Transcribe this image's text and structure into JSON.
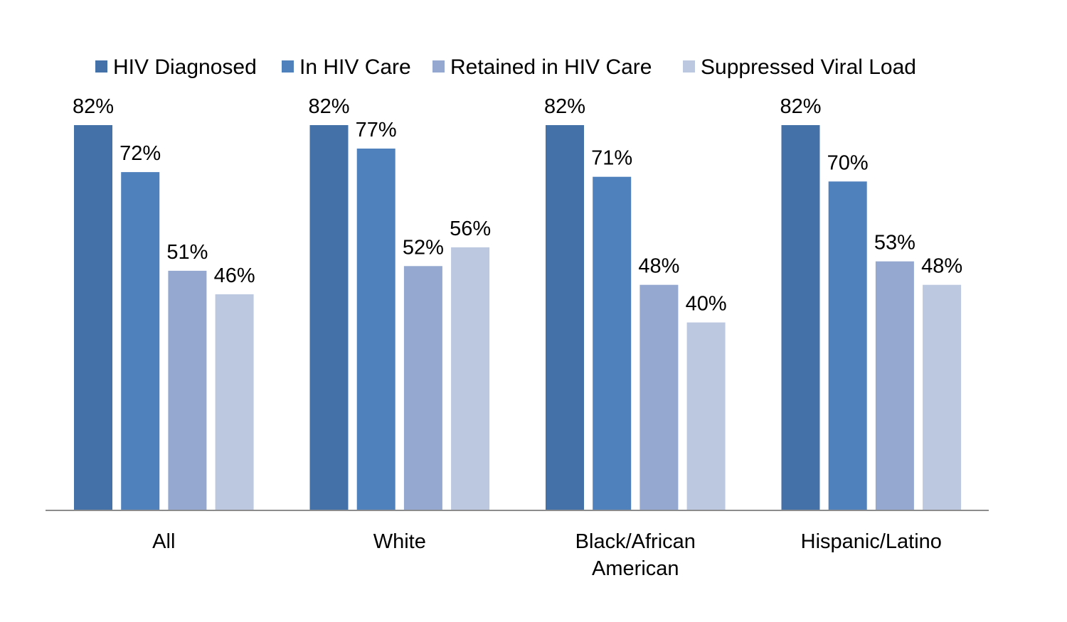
{
  "chart_data": {
    "type": "bar",
    "title": "",
    "xlabel": "",
    "ylabel": "",
    "ylim": [
      0,
      100
    ],
    "grid": false,
    "legend_position": "top",
    "categories": [
      "All",
      "White",
      "Black/African American",
      "Hispanic/Latino"
    ],
    "category_lines": [
      [
        "All"
      ],
      [
        "White"
      ],
      [
        "Black/African",
        "American"
      ],
      [
        "Hispanic/Latino"
      ]
    ],
    "series": [
      {
        "name": "HIV Diagnosed",
        "color": "#4472A8",
        "values": [
          82,
          82,
          82,
          82
        ],
        "labels": [
          "82%",
          "82%",
          "82%",
          "82%"
        ]
      },
      {
        "name": "In HIV Care",
        "color": "#4F81BD",
        "values": [
          72,
          77,
          71,
          70
        ],
        "labels": [
          "72%",
          "77%",
          "71%",
          "70%"
        ]
      },
      {
        "name": "Retained in HIV Care",
        "color": "#95A9D0",
        "values": [
          51,
          52,
          48,
          53
        ],
        "labels": [
          "51%",
          "52%",
          "48%",
          "53%"
        ]
      },
      {
        "name": "Suppressed Viral Load",
        "color": "#BCC8E0",
        "values": [
          46,
          56,
          40,
          48
        ],
        "labels": [
          "46%",
          "56%",
          "40%",
          "48%"
        ]
      }
    ]
  }
}
